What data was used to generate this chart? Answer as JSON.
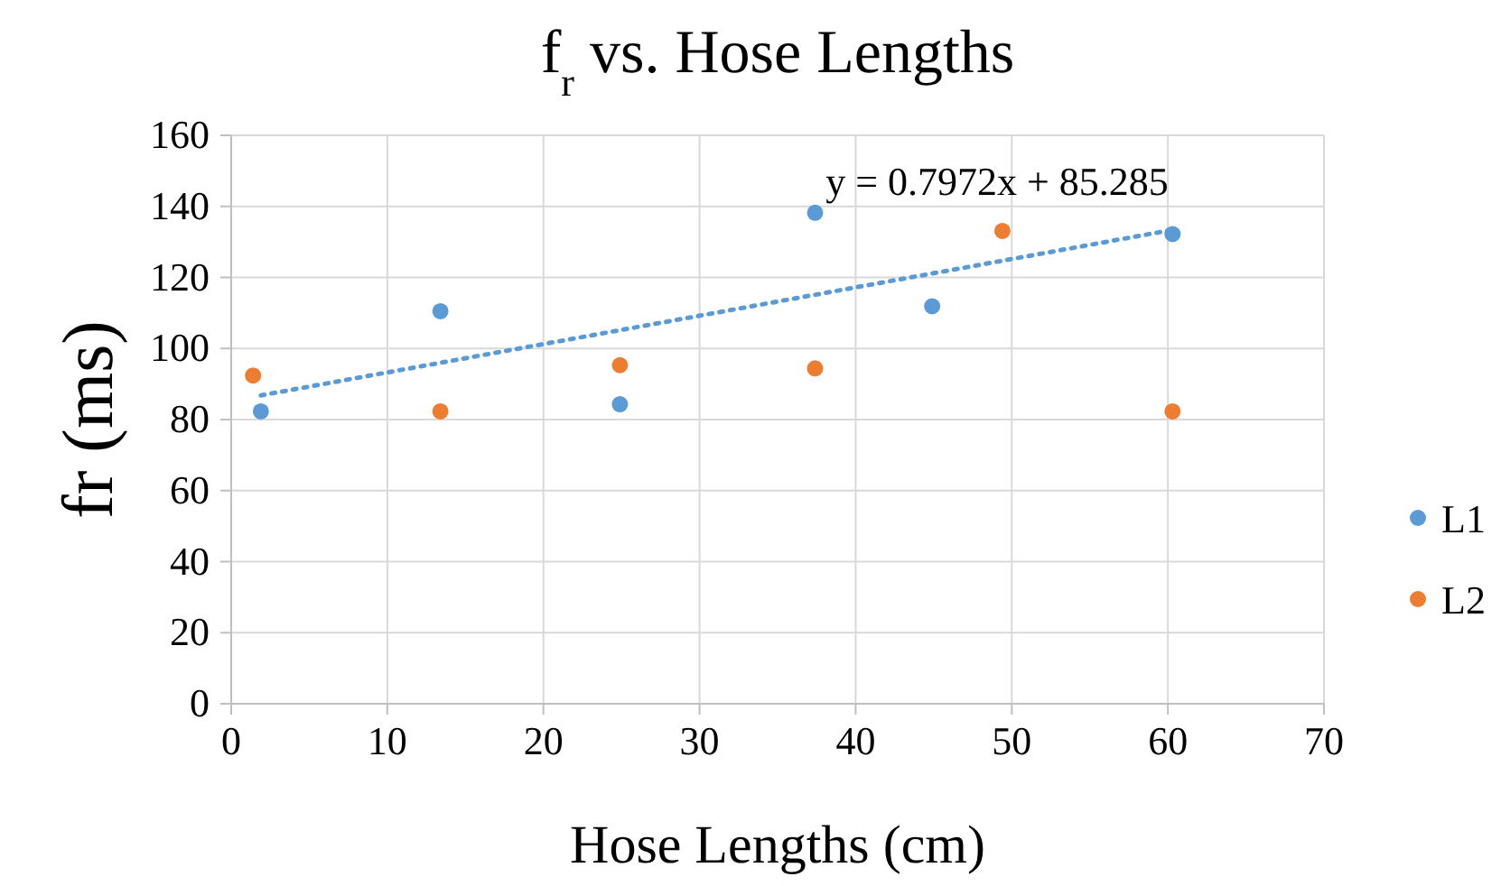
{
  "chart_data": {
    "type": "scatter",
    "title": "f$_{r}$ vs. Hose Lengths",
    "xlabel": "Hose Lengths (cm)",
    "ylabel": "fr (ms)",
    "xlim": [
      0,
      70
    ],
    "xticks": [
      0,
      10,
      20,
      30,
      40,
      50,
      60,
      70
    ],
    "ylim": [
      0,
      160
    ],
    "yticks": [
      0,
      20,
      40,
      60,
      80,
      100,
      120,
      140,
      160
    ],
    "grid": true,
    "legend": "right",
    "marker": "circle",
    "annotations": [
      "y = 0.7972x + 85.285"
    ],
    "series": [
      {
        "name": "L1",
        "color": "#5b9bd5",
        "x": [
          1.9,
          13.4,
          24.9,
          37.4,
          44.9,
          60.3
        ],
        "values": [
          82.3,
          110.5,
          84.3,
          138.2,
          111.9,
          132.2
        ]
      },
      {
        "name": "L2",
        "color": "#ed7d31",
        "x": [
          1.4,
          13.4,
          24.9,
          37.4,
          49.4,
          60.3
        ],
        "values": [
          92.4,
          82.3,
          95.3,
          94.4,
          133.1,
          82.3
        ]
      },
      {
        "type": "line",
        "color": "#5b9bd5",
        "line_style": "dotted",
        "marker": "none",
        "x": [
          1.9,
          60.3
        ],
        "values": [
          86.8,
          133.4
        ]
      }
    ]
  }
}
